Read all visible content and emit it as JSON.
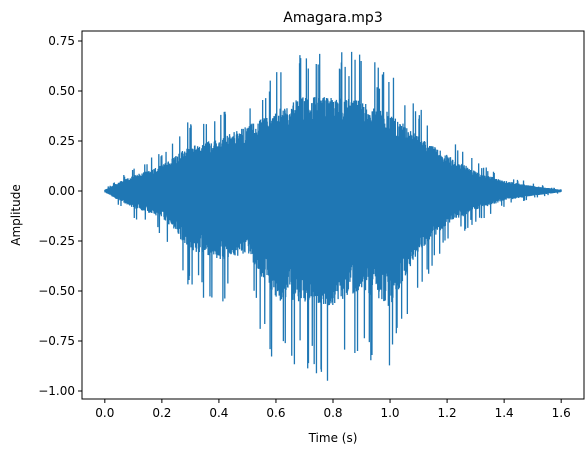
{
  "chart_data": {
    "type": "line",
    "title": "Amagara.mp3",
    "xlabel": "Time (s)",
    "ylabel": "Amplitude",
    "xlim": [
      -0.08,
      1.68
    ],
    "ylim": [
      -1.04,
      0.8
    ],
    "xticks": [
      0.0,
      0.2,
      0.4,
      0.6,
      0.8,
      1.0,
      1.2,
      1.4,
      1.6
    ],
    "xtick_labels": [
      "0.0",
      "0.2",
      "0.4",
      "0.6",
      "0.8",
      "1.0",
      "1.2",
      "1.4",
      "1.6"
    ],
    "yticks": [
      -1.0,
      -0.75,
      -0.5,
      -0.25,
      0.0,
      0.25,
      0.5,
      0.75
    ],
    "ytick_labels": [
      "−1.00",
      "−0.75",
      "−0.50",
      "−0.25",
      "0.00",
      "0.25",
      "0.50",
      "0.75"
    ],
    "grid": false,
    "series": [
      {
        "color": "#1f77b4",
        "duration": 1.6,
        "envelope_time": [
          0.0,
          0.05,
          0.1,
          0.2,
          0.3,
          0.4,
          0.5,
          0.6,
          0.7,
          0.8,
          0.9,
          1.0,
          1.1,
          1.2,
          1.3,
          1.4,
          1.5,
          1.6
        ],
        "envelope_upper": [
          0.01,
          0.07,
          0.12,
          0.2,
          0.36,
          0.4,
          0.5,
          0.62,
          0.73,
          0.72,
          0.7,
          0.6,
          0.42,
          0.28,
          0.15,
          0.08,
          0.04,
          0.01
        ],
        "envelope_lower": [
          -0.01,
          -0.08,
          -0.14,
          -0.22,
          -0.5,
          -0.58,
          -0.52,
          -0.92,
          -0.92,
          -0.96,
          -0.82,
          -0.97,
          -0.5,
          -0.28,
          -0.16,
          -0.08,
          -0.04,
          -0.01
        ]
      }
    ]
  }
}
